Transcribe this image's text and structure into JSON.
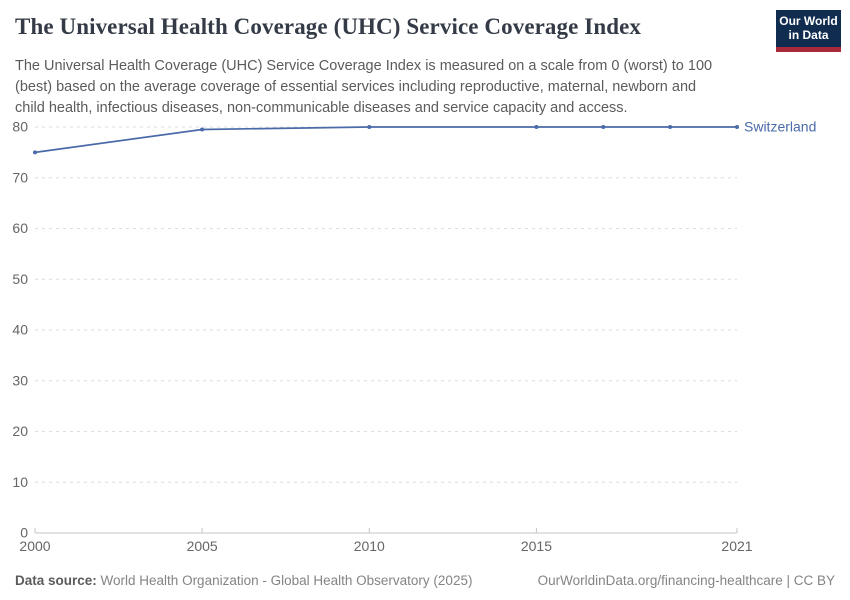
{
  "header": {
    "title": "The Universal Health Coverage (UHC) Service Coverage Index",
    "subtitle": "The Universal Health Coverage (UHC) Service Coverage Index is measured on a scale from 0 (worst) to 100 (best) based on the average coverage of essential services including reproductive, maternal, newborn and child health, infectious diseases, non-communicable diseases and service capacity and access.",
    "logo": {
      "line1": "Our World",
      "line2": "in Data"
    }
  },
  "chart_data": {
    "type": "line",
    "title": "The Universal Health Coverage (UHC) Service Coverage Index",
    "x": [
      2000,
      2005,
      2010,
      2015,
      2017,
      2019,
      2021
    ],
    "series": [
      {
        "name": "Switzerland",
        "values": [
          75,
          79.5,
          80,
          80,
          80,
          80,
          80
        ],
        "color": "#4a6aa8"
      }
    ],
    "xlabel": "",
    "ylabel": "",
    "xlim": [
      2000,
      2021
    ],
    "ylim": [
      0,
      80
    ],
    "xticks": [
      2000,
      2005,
      2010,
      2015,
      2021
    ],
    "yticks": [
      0,
      10,
      20,
      30,
      40,
      50,
      60,
      70,
      80
    ],
    "grid": "horizontal dashed",
    "legend": "inline label at end of line"
  },
  "footer": {
    "datasource_label": "Data source:",
    "datasource_text": " World Health Organization - Global Health Observatory (2025)",
    "attribution": "OurWorldinData.org/financing-healthcare | CC BY"
  },
  "colors": {
    "line": "#4a6aa8",
    "grid": "#dcdcdc",
    "axis": "#c6c6c6",
    "axis_label": "#666666",
    "title": "#343b46",
    "subtitle": "#5b5b5b",
    "logo_bg": "#102d50",
    "logo_red": "#a9283a"
  }
}
